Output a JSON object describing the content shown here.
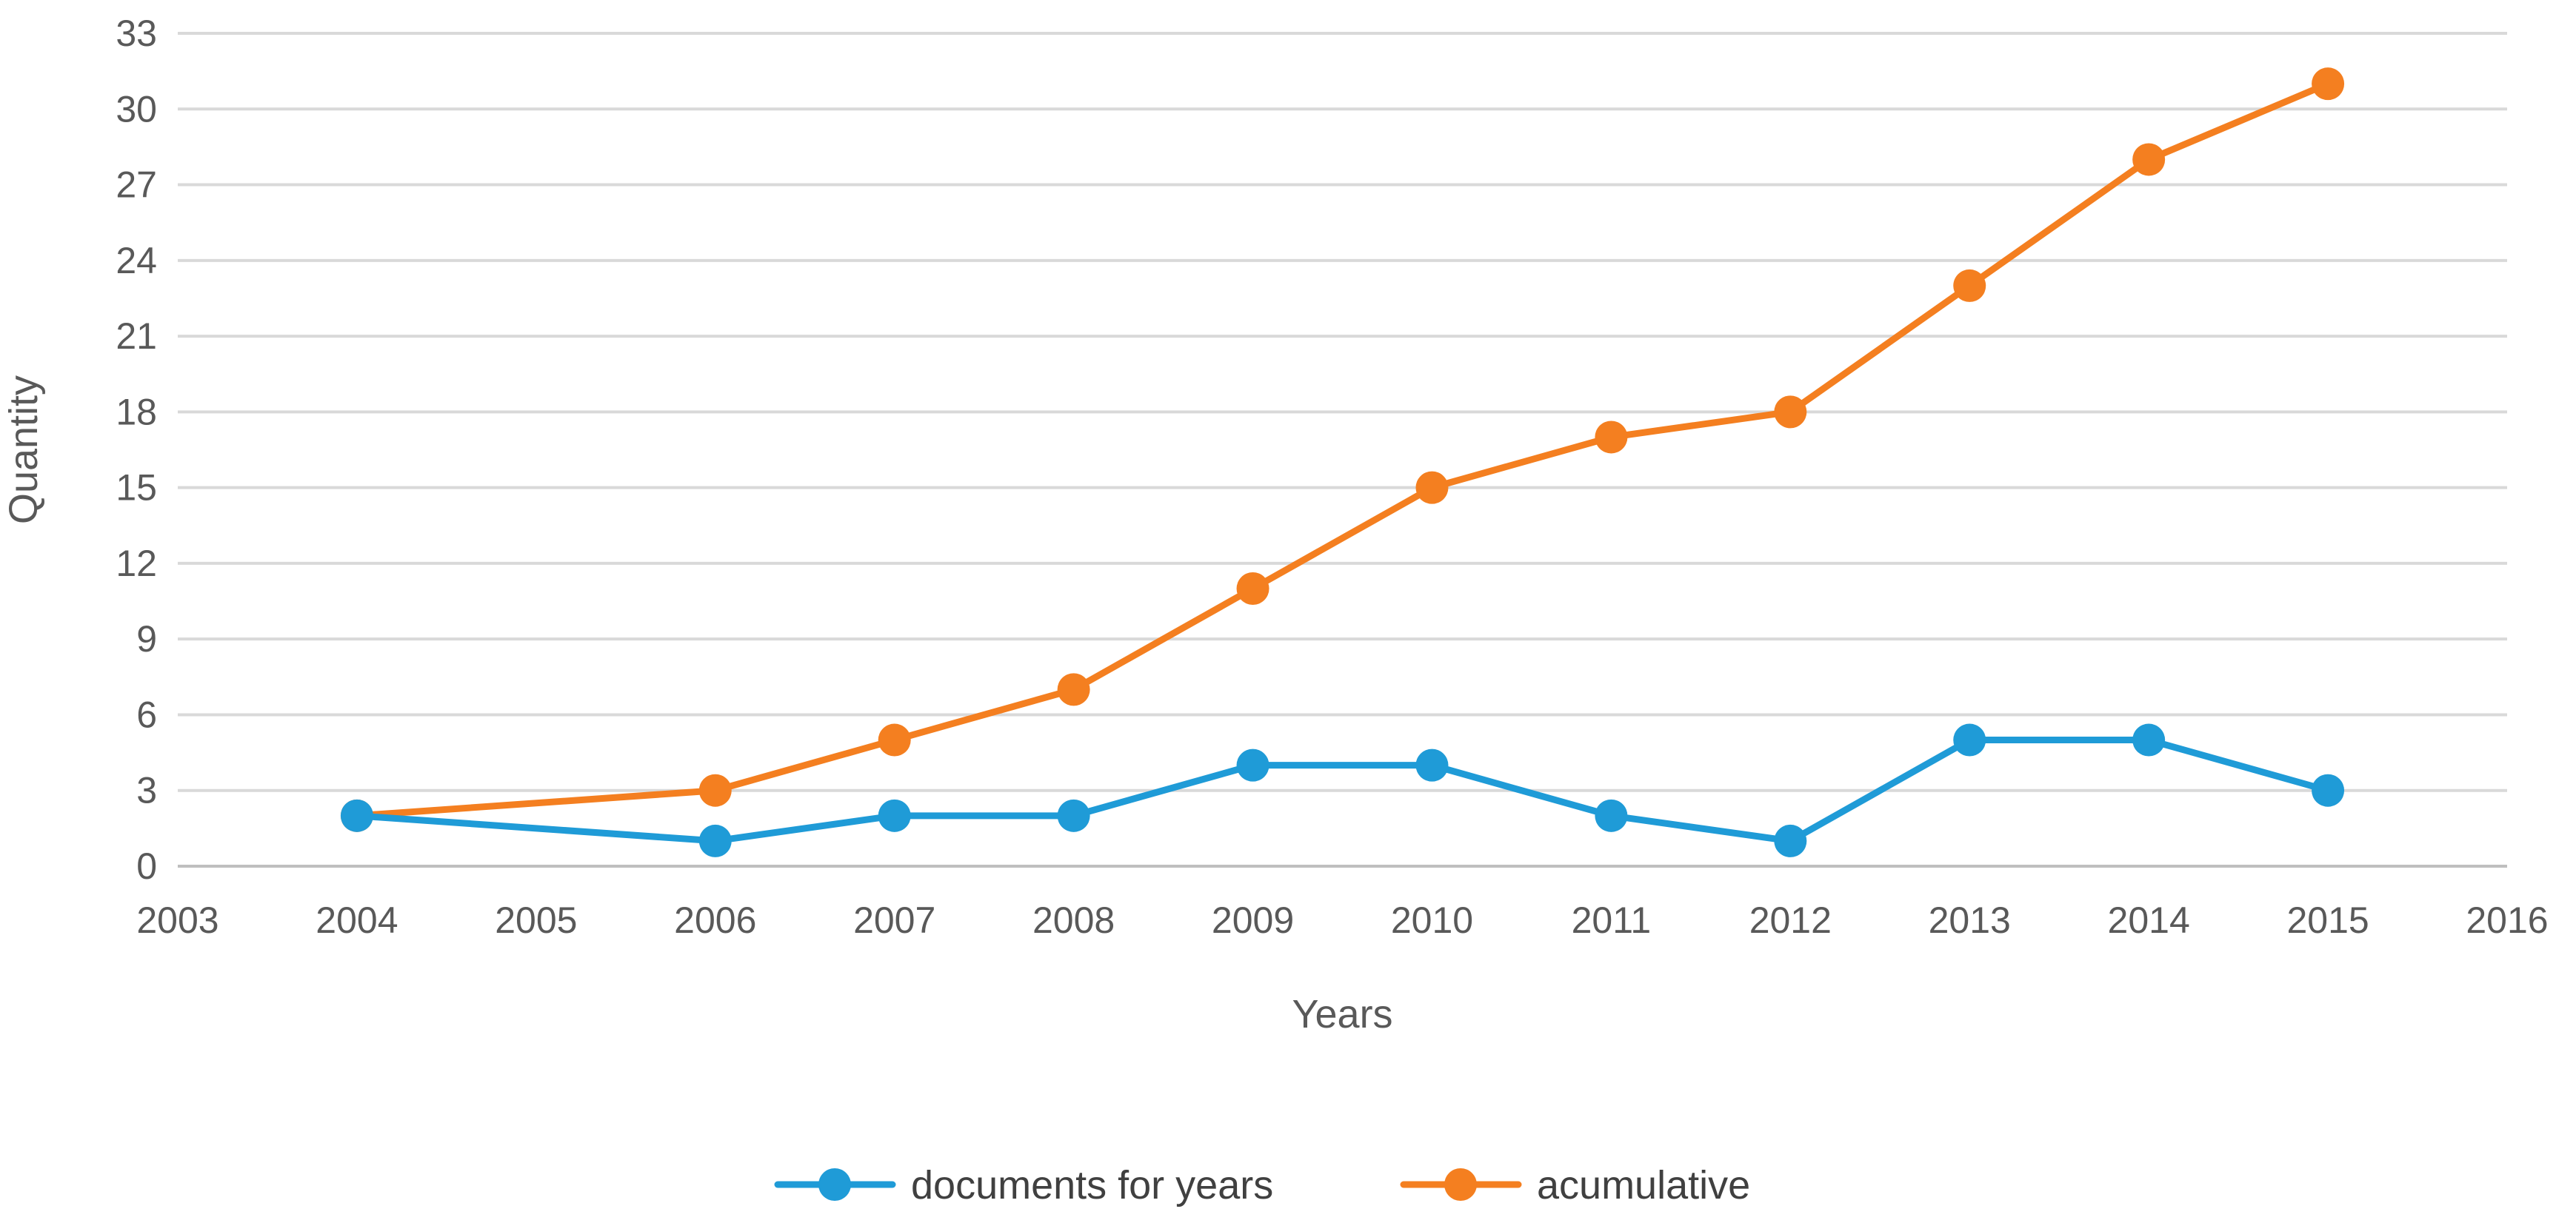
{
  "chart_data": {
    "type": "line",
    "title": "",
    "xlabel": "Years",
    "ylabel": "Quantity",
    "xlim": [
      2003,
      2016
    ],
    "ylim": [
      0,
      33
    ],
    "x_ticks": [
      2003,
      2004,
      2005,
      2006,
      2007,
      2008,
      2009,
      2010,
      2011,
      2012,
      2013,
      2014,
      2015,
      2016
    ],
    "y_ticks": [
      0,
      3,
      6,
      9,
      12,
      15,
      18,
      21,
      24,
      27,
      30,
      33
    ],
    "grid": "horizontal",
    "legend_position": "bottom",
    "series": [
      {
        "name": "documents for years",
        "color": "#1f9bd7",
        "x": [
          2004,
          2006,
          2007,
          2008,
          2009,
          2010,
          2011,
          2012,
          2013,
          2014,
          2015
        ],
        "y": [
          2,
          1,
          2,
          2,
          4,
          4,
          2,
          1,
          5,
          5,
          3
        ]
      },
      {
        "name": "acumulative",
        "color": "#f47f20",
        "x": [
          2004,
          2006,
          2007,
          2008,
          2009,
          2010,
          2011,
          2012,
          2013,
          2014,
          2015
        ],
        "y": [
          2,
          3,
          5,
          7,
          11,
          15,
          17,
          18,
          23,
          28,
          31
        ]
      }
    ]
  }
}
